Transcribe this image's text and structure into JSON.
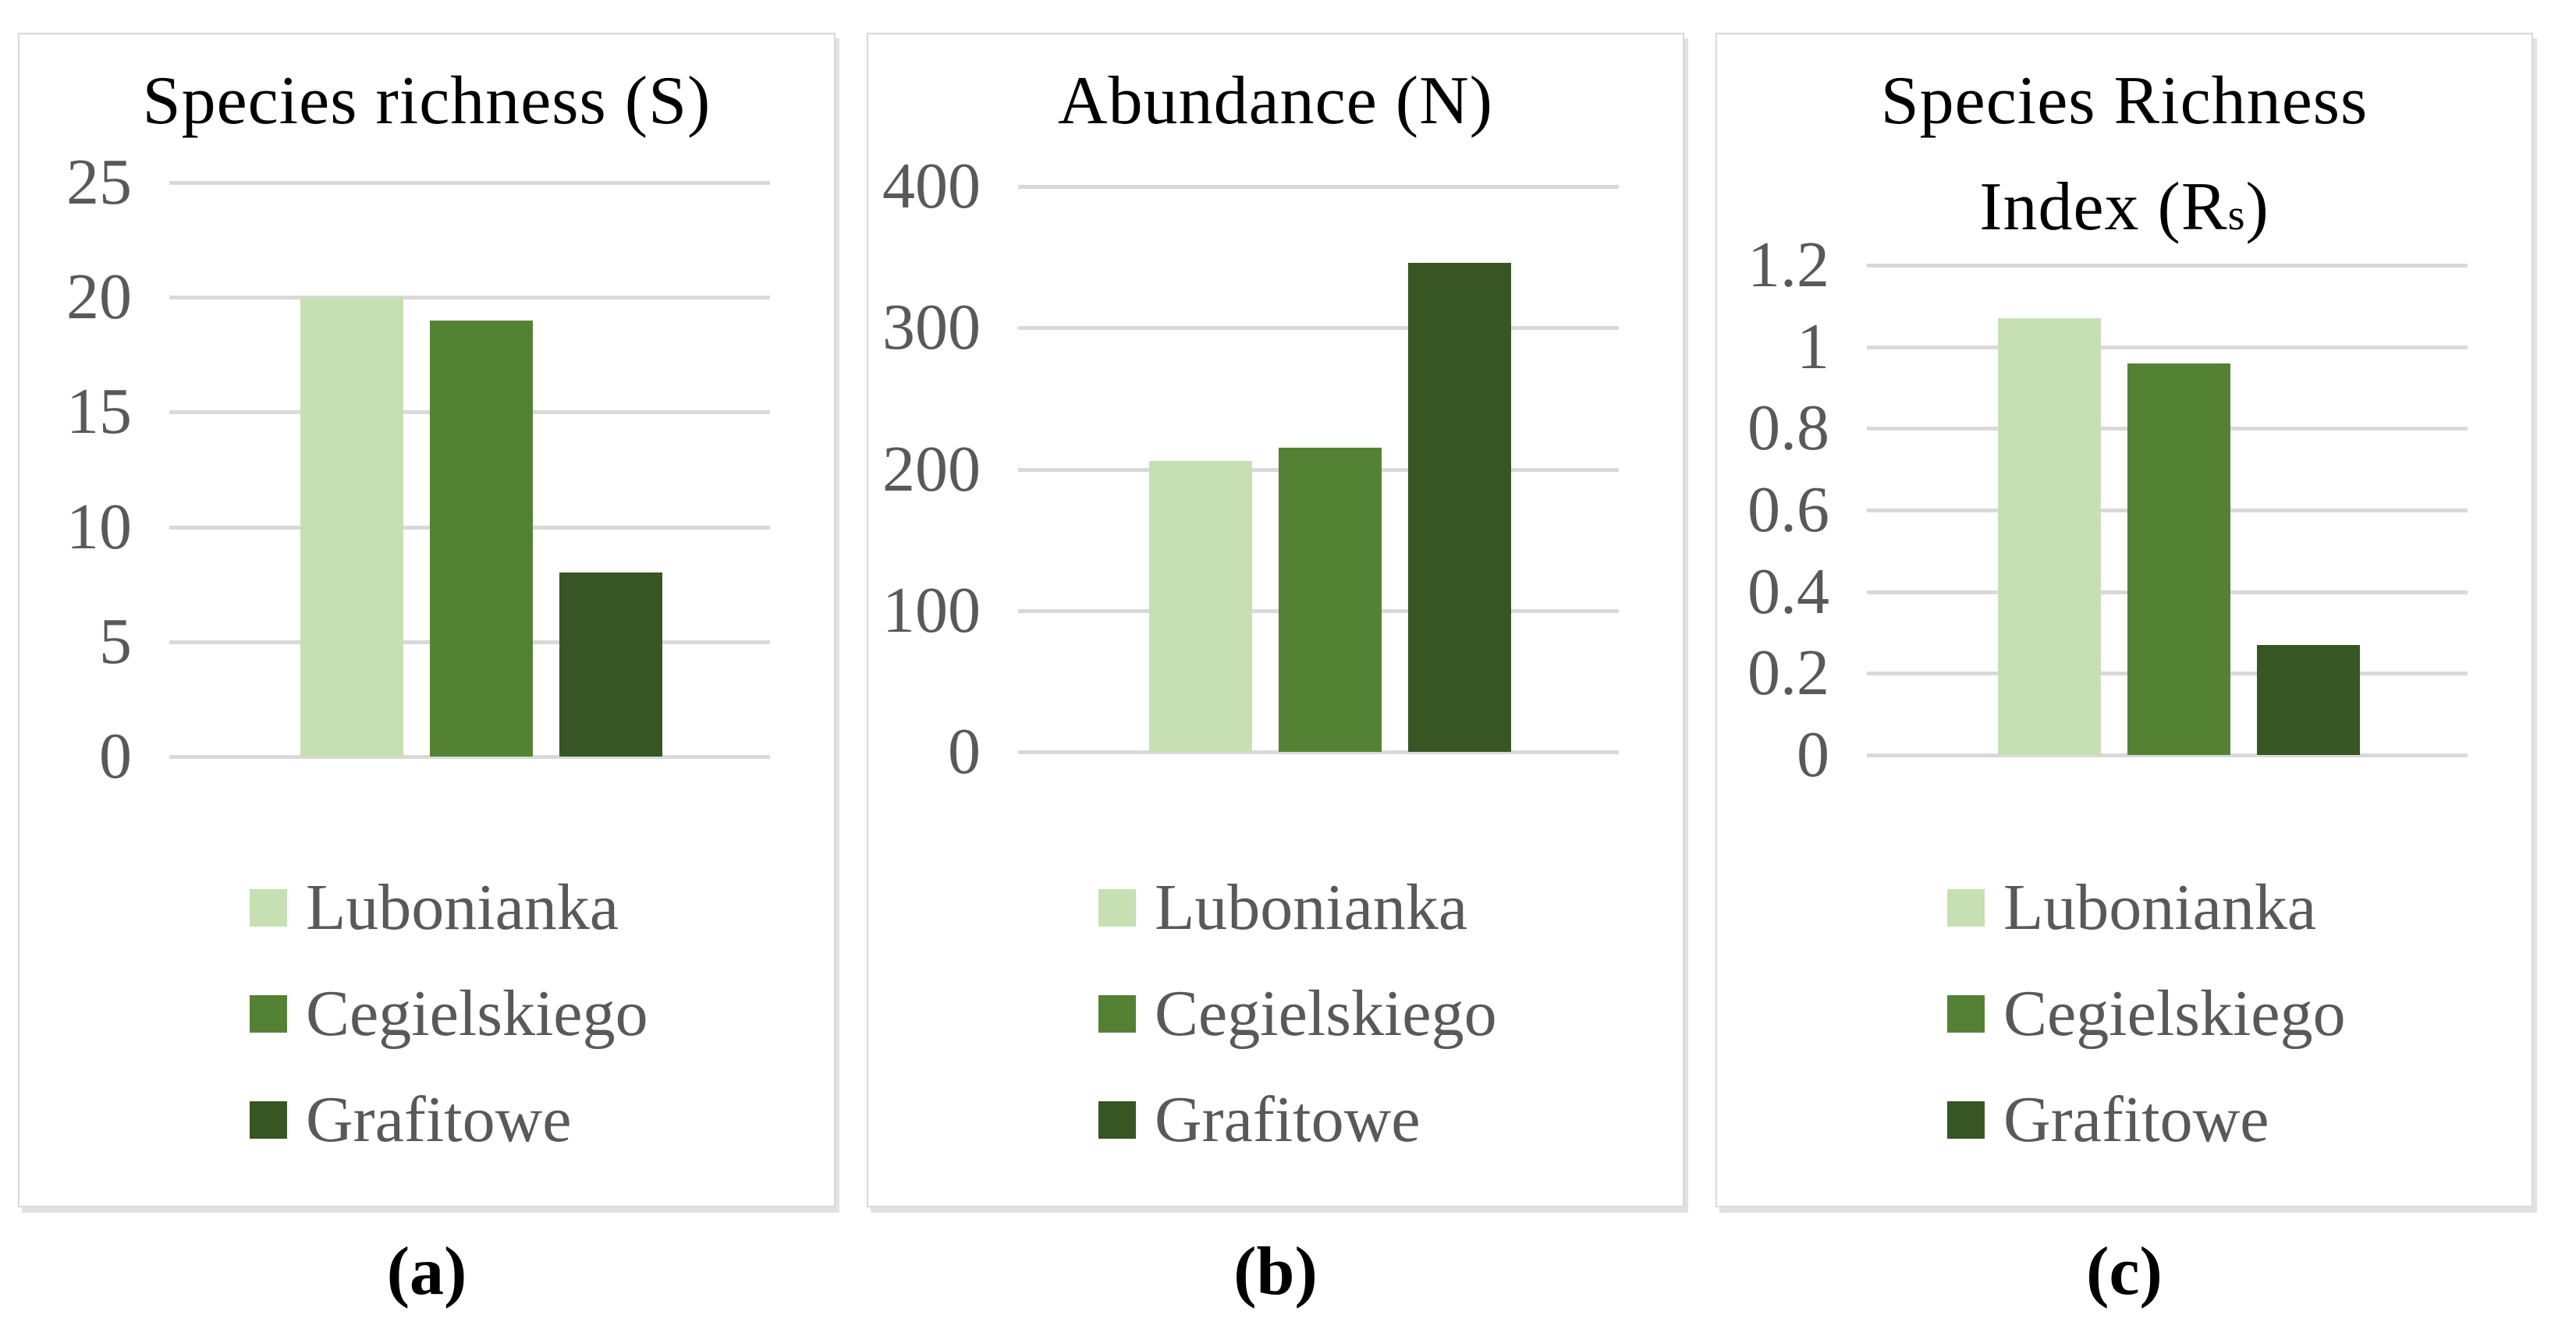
{
  "legend": {
    "items": [
      {
        "label": "Lubonianka",
        "color": "#C6E0B4"
      },
      {
        "label": "Cegielskiego",
        "color": "#548235"
      },
      {
        "label": "Grafitowe",
        "color": "#375623"
      }
    ]
  },
  "colors": {
    "gridline": "#D9D9D9",
    "tick_text": "#595959",
    "legend_text": "#595959",
    "title_text": "#000000",
    "panel_border": "#D9D9D9",
    "background": "#FFFFFF",
    "bar_light": "#C6E0B4",
    "bar_medium": "#548235",
    "bar_dark": "#375623"
  },
  "chart_data": [
    {
      "id": "a",
      "type": "bar",
      "title": "Species richness (S)",
      "categories": [
        "Lubonianka",
        "Cegielskiego",
        "Grafitowe"
      ],
      "values": [
        20,
        19,
        8
      ],
      "ylim": [
        0,
        25
      ],
      "yticks": [
        "25",
        "20",
        "15",
        "10",
        "5",
        "0"
      ],
      "grid": true,
      "legend_position": "bottom",
      "caption": "(a)"
    },
    {
      "id": "b",
      "type": "bar",
      "title": "Abundance (N)",
      "categories": [
        "Lubonianka",
        "Cegielskiego",
        "Grafitowe"
      ],
      "values": [
        206,
        215,
        346
      ],
      "ylim": [
        0,
        400
      ],
      "yticks": [
        "400",
        "300",
        "200",
        "100",
        "0"
      ],
      "grid": true,
      "legend_position": "bottom",
      "caption": "(b)"
    },
    {
      "id": "c",
      "type": "bar",
      "title": "Species Richness Index (Rs)",
      "title_lines": [
        "Species Richness"
      ],
      "title_line2": {
        "pre": "Index (R",
        "sub": "s",
        "post": ")"
      },
      "categories": [
        "Lubonianka",
        "Cegielskiego",
        "Grafitowe"
      ],
      "values": [
        1.07,
        0.96,
        0.27
      ],
      "ylim": [
        0,
        1.2
      ],
      "yticks": [
        "1.2",
        "1",
        "0.8",
        "0.6",
        "0.4",
        "0.2",
        "0"
      ],
      "grid": true,
      "legend_position": "bottom",
      "caption": "(c)"
    }
  ]
}
